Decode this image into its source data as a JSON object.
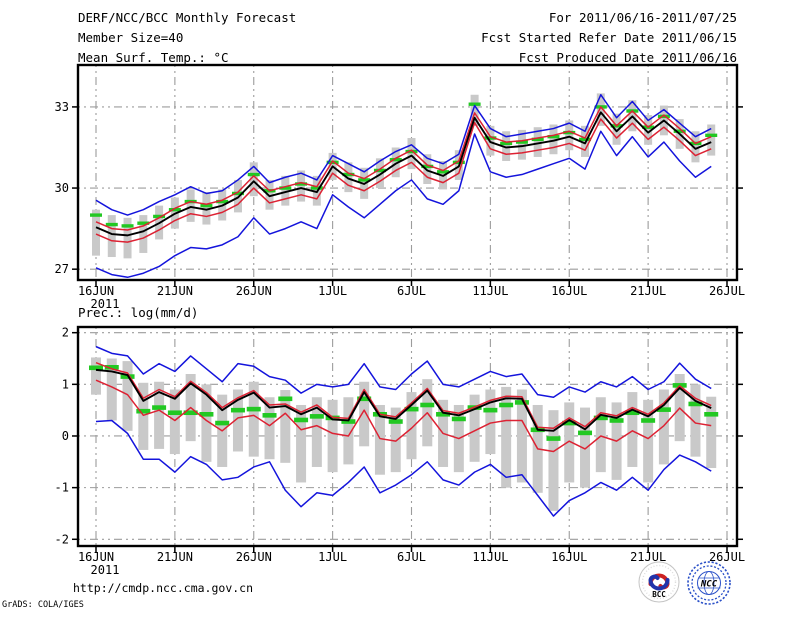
{
  "header": {
    "title": "DERF/NCC/BCC Monthly Forecast",
    "member_size": "Member Size=40",
    "for_range": "For 2011/06/16-2011/07/25",
    "refer_date": "Fcst Started Refer Date 2011/06/15",
    "produced_date": "Fcst Produced Date 2011/06/16"
  },
  "footer": {
    "url": "http://cmdp.ncc.cma.gov.cn",
    "grads_credit": "GrADS: COLA/IGES",
    "bcc_label": "BCC",
    "ncc_label": "NCC"
  },
  "colors": {
    "envelope_blue": "#1414dc",
    "quartile_red": "#dd2233",
    "mean_black": "#000000",
    "reference_green": "#22c822",
    "spread_gray": "#c9c9c9",
    "grid_gray": "#9c9c9c",
    "frame_black": "#000000"
  },
  "chart_data": [
    {
      "type": "line",
      "title": "Mean Surf. Temp.: °C",
      "x_tick_labels": [
        "16JUN",
        "21JUN",
        "26JUN",
        "1JUL",
        "6JUL",
        "11JUL",
        "16JUL",
        "21JUL",
        "26JUL"
      ],
      "x_year_label": "2011",
      "n_days": 40,
      "ylim": [
        26.6,
        34.55
      ],
      "yticks": [
        27,
        30,
        33
      ],
      "grid": true,
      "legend_position": "none",
      "series": [
        {
          "name": "envelope-upper",
          "color": "#1414dc",
          "values": [
            29.55,
            29.2,
            29.0,
            29.2,
            29.5,
            29.75,
            30.05,
            29.8,
            29.9,
            30.3,
            30.8,
            30.2,
            30.4,
            30.55,
            30.3,
            31.2,
            30.9,
            30.6,
            31.0,
            31.35,
            31.6,
            31.1,
            30.9,
            31.25,
            33.05,
            32.2,
            31.9,
            32.0,
            32.1,
            32.2,
            32.4,
            32.1,
            33.45,
            32.6,
            33.2,
            32.5,
            32.9,
            32.4,
            31.9,
            32.2
          ]
        },
        {
          "name": "quartile-upper",
          "color": "#dd2233",
          "values": [
            28.75,
            28.5,
            28.45,
            28.6,
            28.9,
            29.25,
            29.5,
            29.4,
            29.55,
            29.85,
            30.45,
            29.9,
            30.05,
            30.2,
            30.05,
            31.0,
            30.55,
            30.35,
            30.7,
            31.1,
            31.4,
            30.85,
            30.65,
            31.0,
            32.78,
            31.9,
            31.7,
            31.75,
            31.85,
            31.95,
            32.1,
            31.85,
            33.0,
            32.3,
            32.85,
            32.25,
            32.7,
            32.2,
            31.65,
            31.9
          ]
        },
        {
          "name": "ensemble-mean",
          "color": "#000000",
          "values": [
            28.55,
            28.3,
            28.25,
            28.4,
            28.7,
            29.05,
            29.3,
            29.2,
            29.35,
            29.65,
            30.25,
            29.7,
            29.85,
            30.0,
            29.85,
            30.8,
            30.35,
            30.15,
            30.5,
            30.9,
            31.2,
            30.65,
            30.45,
            30.8,
            32.6,
            31.7,
            31.5,
            31.55,
            31.65,
            31.75,
            31.9,
            31.65,
            32.8,
            32.1,
            32.65,
            32.05,
            32.5,
            32.0,
            31.45,
            31.7
          ]
        },
        {
          "name": "quartile-lower",
          "color": "#dd2233",
          "values": [
            28.3,
            28.05,
            28.0,
            28.15,
            28.45,
            28.8,
            29.05,
            28.95,
            29.1,
            29.4,
            30.0,
            29.45,
            29.6,
            29.75,
            29.6,
            30.55,
            30.1,
            29.9,
            30.25,
            30.65,
            30.95,
            30.4,
            30.2,
            30.55,
            32.42,
            31.45,
            31.25,
            31.3,
            31.4,
            31.5,
            31.65,
            31.4,
            32.55,
            31.85,
            32.4,
            31.8,
            32.25,
            31.75,
            31.2,
            31.45
          ]
        },
        {
          "name": "envelope-lower",
          "color": "#1414dc",
          "values": [
            27.05,
            26.8,
            26.7,
            26.85,
            27.1,
            27.5,
            27.8,
            27.75,
            27.9,
            28.2,
            28.9,
            28.3,
            28.5,
            28.75,
            28.5,
            29.75,
            29.3,
            28.9,
            29.4,
            29.9,
            30.3,
            29.6,
            29.4,
            29.9,
            32.0,
            30.6,
            30.4,
            30.5,
            30.7,
            30.9,
            31.1,
            30.7,
            32.1,
            31.2,
            31.9,
            31.15,
            31.7,
            31.0,
            30.4,
            30.8
          ]
        }
      ],
      "obs_dashes": {
        "name": "reference-dash",
        "color": "#22c822",
        "values": [
          29.0,
          28.65,
          28.6,
          28.7,
          28.95,
          29.2,
          29.5,
          29.35,
          29.5,
          29.8,
          30.5,
          29.9,
          30.0,
          30.15,
          30.0,
          30.95,
          30.5,
          30.3,
          30.65,
          31.05,
          31.35,
          30.8,
          30.6,
          30.95,
          33.1,
          31.85,
          31.65,
          31.7,
          31.8,
          31.9,
          32.05,
          31.8,
          33.0,
          32.3,
          32.85,
          32.25,
          32.65,
          32.1,
          31.65,
          31.95
        ]
      },
      "bars": {
        "name": "spread-bar",
        "color": "#c9c9c9",
        "ranges": [
          [
            27.5,
            29.2
          ],
          [
            27.45,
            29.0
          ],
          [
            27.4,
            28.9
          ],
          [
            27.6,
            29.0
          ],
          [
            28.1,
            29.35
          ],
          [
            28.5,
            29.65
          ],
          [
            28.75,
            29.95
          ],
          [
            28.65,
            29.85
          ],
          [
            28.8,
            29.95
          ],
          [
            29.1,
            30.3
          ],
          [
            29.7,
            30.95
          ],
          [
            29.2,
            30.3
          ],
          [
            29.35,
            30.45
          ],
          [
            29.5,
            30.65
          ],
          [
            29.35,
            30.45
          ],
          [
            30.3,
            31.3
          ],
          [
            29.85,
            30.95
          ],
          [
            29.6,
            30.75
          ],
          [
            30.0,
            31.1
          ],
          [
            30.4,
            31.5
          ],
          [
            30.7,
            31.85
          ],
          [
            30.15,
            31.25
          ],
          [
            29.95,
            31.0
          ],
          [
            30.3,
            31.4
          ],
          [
            32.3,
            33.45
          ],
          [
            31.2,
            32.3
          ],
          [
            31.0,
            32.1
          ],
          [
            31.05,
            32.15
          ],
          [
            31.15,
            32.25
          ],
          [
            31.25,
            32.35
          ],
          [
            31.4,
            32.5
          ],
          [
            31.15,
            32.3
          ],
          [
            32.3,
            33.5
          ],
          [
            31.6,
            32.75
          ],
          [
            32.1,
            33.25
          ],
          [
            31.6,
            32.7
          ],
          [
            31.95,
            33.05
          ],
          [
            31.45,
            32.55
          ],
          [
            30.95,
            32.1
          ],
          [
            31.2,
            32.35
          ]
        ]
      }
    },
    {
      "type": "line",
      "title": "Prec.: log(mm/d)",
      "x_tick_labels": [
        "16JUN",
        "21JUN",
        "26JUN",
        "1JUL",
        "6JUL",
        "11JUL",
        "16JUL",
        "21JUL",
        "26JUL"
      ],
      "x_year_label": "2011",
      "n_days": 40,
      "ylim": [
        -2.13,
        2.11
      ],
      "yticks": [
        -2,
        -1,
        0,
        1,
        2
      ],
      "grid": true,
      "legend_position": "none",
      "series": [
        {
          "name": "envelope-upper",
          "color": "#1414dc",
          "values": [
            1.73,
            1.6,
            1.55,
            1.2,
            1.4,
            1.25,
            1.55,
            1.3,
            1.05,
            1.4,
            1.35,
            1.15,
            1.08,
            0.83,
            1.0,
            0.95,
            1.0,
            1.4,
            0.95,
            0.9,
            1.2,
            1.45,
            1.0,
            0.95,
            1.1,
            1.25,
            1.15,
            1.2,
            0.8,
            0.75,
            0.95,
            0.85,
            1.05,
            0.95,
            1.15,
            0.9,
            1.05,
            1.41,
            1.1,
            0.92
          ]
        },
        {
          "name": "quartile-upper",
          "color": "#dd2233",
          "values": [
            1.42,
            1.3,
            1.22,
            0.73,
            0.9,
            0.76,
            1.06,
            0.84,
            0.55,
            0.74,
            0.88,
            0.6,
            0.62,
            0.46,
            0.6,
            0.36,
            0.34,
            0.9,
            0.42,
            0.37,
            0.64,
            0.92,
            0.49,
            0.44,
            0.56,
            0.69,
            0.77,
            0.76,
            0.17,
            0.15,
            0.35,
            0.18,
            0.45,
            0.39,
            0.55,
            0.42,
            0.64,
            0.97,
            0.73,
            0.59
          ]
        },
        {
          "name": "ensemble-mean",
          "color": "#000000",
          "values": [
            1.28,
            1.25,
            1.18,
            0.68,
            0.85,
            0.72,
            1.02,
            0.8,
            0.5,
            0.7,
            0.84,
            0.55,
            0.58,
            0.42,
            0.55,
            0.32,
            0.3,
            0.85,
            0.38,
            0.33,
            0.6,
            0.88,
            0.45,
            0.4,
            0.52,
            0.65,
            0.73,
            0.72,
            0.12,
            0.1,
            0.31,
            0.13,
            0.41,
            0.35,
            0.51,
            0.38,
            0.6,
            0.93,
            0.68,
            0.54
          ]
        },
        {
          "name": "quartile-lower",
          "color": "#dd2233",
          "values": [
            1.08,
            0.95,
            0.8,
            0.4,
            0.5,
            0.3,
            0.55,
            0.3,
            0.1,
            0.35,
            0.4,
            0.2,
            0.44,
            0.12,
            0.2,
            0.05,
            0.0,
            0.5,
            -0.05,
            -0.1,
            0.15,
            0.45,
            0.05,
            -0.05,
            0.1,
            0.25,
            0.3,
            0.3,
            -0.25,
            -0.3,
            -0.1,
            -0.25,
            0.0,
            -0.1,
            0.1,
            -0.05,
            0.2,
            0.54,
            0.25,
            0.2
          ]
        },
        {
          "name": "envelope-lower",
          "color": "#1414dc",
          "values": [
            0.28,
            0.3,
            0.05,
            -0.45,
            -0.45,
            -0.7,
            -0.4,
            -0.55,
            -0.85,
            -0.8,
            -0.6,
            -0.5,
            -1.05,
            -1.37,
            -1.1,
            -1.15,
            -0.9,
            -0.6,
            -1.1,
            -0.95,
            -0.75,
            -0.5,
            -0.85,
            -0.95,
            -0.7,
            -0.55,
            -0.8,
            -0.75,
            -1.15,
            -1.55,
            -1.25,
            -1.1,
            -0.9,
            -1.05,
            -0.8,
            -1.05,
            -0.65,
            -0.37,
            -0.5,
            -0.68
          ]
        }
      ],
      "obs_dashes": {
        "name": "reference-dash",
        "color": "#22c822",
        "values": [
          1.32,
          1.33,
          1.15,
          0.48,
          0.55,
          0.45,
          0.45,
          0.42,
          0.25,
          0.5,
          0.52,
          0.4,
          0.72,
          0.31,
          0.38,
          0.35,
          0.28,
          0.72,
          0.42,
          0.28,
          0.52,
          0.6,
          0.42,
          0.33,
          0.55,
          0.5,
          0.6,
          0.65,
          0.12,
          -0.05,
          0.25,
          0.06,
          0.35,
          0.3,
          0.45,
          0.3,
          0.51,
          0.98,
          0.62,
          0.42
        ]
      },
      "bars": {
        "name": "spread-bar",
        "color": "#c9c9c9",
        "ranges": [
          [
            0.8,
            1.52
          ],
          [
            0.3,
            1.5
          ],
          [
            0.1,
            1.45
          ],
          [
            -0.27,
            1.03
          ],
          [
            -0.25,
            1.05
          ],
          [
            -0.35,
            0.9
          ],
          [
            -0.1,
            1.2
          ],
          [
            -0.5,
            1.0
          ],
          [
            -0.6,
            0.8
          ],
          [
            -0.3,
            0.9
          ],
          [
            -0.4,
            1.05
          ],
          [
            -0.45,
            0.75
          ],
          [
            -0.52,
            0.89
          ],
          [
            -0.9,
            0.6
          ],
          [
            -0.6,
            0.75
          ],
          [
            -0.7,
            0.7
          ],
          [
            -0.55,
            0.75
          ],
          [
            -0.2,
            1.05
          ],
          [
            -0.75,
            0.6
          ],
          [
            -0.7,
            0.55
          ],
          [
            -0.45,
            0.85
          ],
          [
            -0.2,
            1.1
          ],
          [
            -0.6,
            0.7
          ],
          [
            -0.7,
            0.6
          ],
          [
            -0.5,
            0.8
          ],
          [
            -0.35,
            0.9
          ],
          [
            -1.0,
            0.95
          ],
          [
            -0.9,
            0.9
          ],
          [
            -1.1,
            0.6
          ],
          [
            -1.45,
            0.5
          ],
          [
            -0.9,
            0.65
          ],
          [
            -1.0,
            0.55
          ],
          [
            -0.7,
            0.75
          ],
          [
            -0.85,
            0.65
          ],
          [
            -0.6,
            0.85
          ],
          [
            -0.9,
            0.7
          ],
          [
            -0.55,
            0.9
          ],
          [
            -0.1,
            1.2
          ],
          [
            -0.4,
            1.0
          ],
          [
            -0.62,
            0.76
          ]
        ]
      }
    }
  ]
}
